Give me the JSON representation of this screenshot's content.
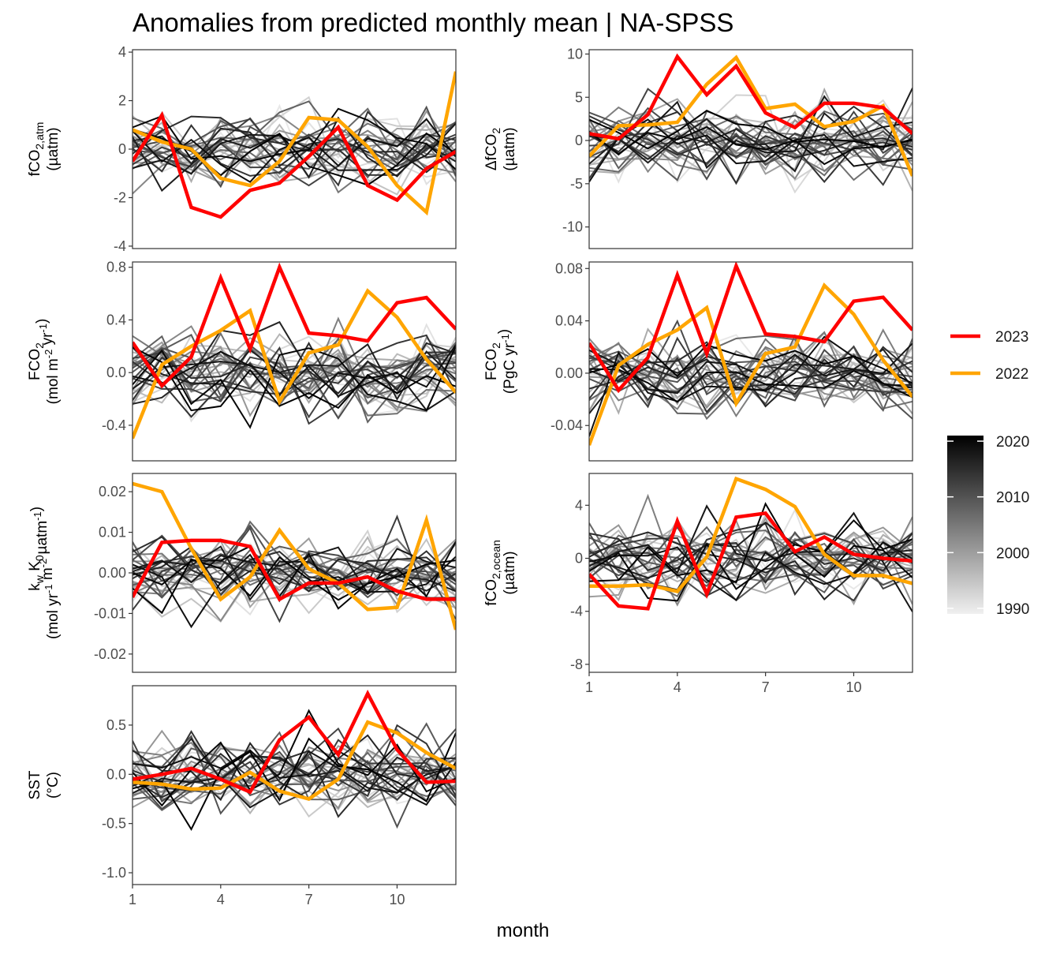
{
  "title": "Anomalies from predicted monthly mean | NA-SPSS",
  "x_axis_title": "month",
  "colors": {
    "2023": "#ff0000",
    "2022": "#ffa500",
    "grey_light": "#e8e8e8",
    "grey_dark": "#000000"
  },
  "legend": {
    "highlight": [
      {
        "label": "2023",
        "color": "#ff0000"
      },
      {
        "label": "2022",
        "color": "#ffa500"
      }
    ],
    "colorbar": {
      "ticks": [
        "2020",
        "2010",
        "2000",
        "1990"
      ],
      "range": [
        1989,
        2021
      ]
    }
  },
  "chart_data": [
    {
      "type": "line",
      "panel": "fco2-atm",
      "ylabel": {
        "l1": "fCO",
        "sub": "2,atm",
        "l2": "(µatm)"
      },
      "xlim": [
        1,
        12
      ],
      "xticks": [
        "1",
        "4",
        "7",
        "10"
      ],
      "ylim": [
        -4.1,
        4.1
      ],
      "yticks": [
        "-4",
        "-2",
        "0",
        "2",
        "4"
      ],
      "ytick_values": [
        -4,
        -2,
        0,
        2,
        4
      ],
      "x": [
        1,
        2,
        3,
        4,
        5,
        6,
        7,
        8,
        9,
        10,
        11,
        12
      ],
      "series": [
        {
          "year": "2023",
          "values": [
            -0.5,
            1.4,
            -2.4,
            -2.8,
            -1.7,
            -1.4,
            -0.3,
            0.9,
            -1.5,
            -2.1,
            -0.8,
            -0.1
          ]
        },
        {
          "year": "2022",
          "values": [
            0.8,
            0.3,
            0.0,
            -1.2,
            -1.5,
            -0.5,
            1.3,
            1.2,
            0.1,
            -1.5,
            -2.6,
            3.2
          ]
        }
      ]
    },
    {
      "type": "line",
      "panel": "delta-fco2",
      "ylabel": {
        "l1": "ΔfCO",
        "sub": "2",
        "l2": "(µatm)"
      },
      "xlim": [
        1,
        12
      ],
      "xticks": [
        "1",
        "4",
        "7",
        "10"
      ],
      "ylim": [
        -12.5,
        10.5
      ],
      "yticks": [
        "-10",
        "-5",
        "0",
        "5",
        "10"
      ],
      "ytick_values": [
        -10,
        -5,
        0,
        5,
        10
      ],
      "x": [
        1,
        2,
        3,
        4,
        5,
        6,
        7,
        8,
        9,
        10,
        11,
        12
      ],
      "series": [
        {
          "year": "2023",
          "values": [
            0.8,
            0.2,
            3.0,
            9.7,
            5.3,
            8.6,
            3.2,
            1.5,
            4.3,
            4.3,
            3.8,
            0.8
          ]
        },
        {
          "year": "2022",
          "values": [
            -1.8,
            1.7,
            1.8,
            2.1,
            6.5,
            9.6,
            3.7,
            4.2,
            1.6,
            2.2,
            4.0,
            -4.1
          ]
        }
      ]
    },
    {
      "type": "line",
      "panel": "fco2-flux-area",
      "ylabel": {
        "l1": "FCO",
        "sub": "2",
        "l2": "(mol m-2 yr-1)"
      },
      "xlim": [
        1,
        12
      ],
      "xticks": [
        "1",
        "4",
        "7",
        "10"
      ],
      "ylim": [
        -0.67,
        0.84
      ],
      "yticks": [
        "-0.4",
        "0.0",
        "0.4",
        "0.8"
      ],
      "ytick_values": [
        -0.4,
        0.0,
        0.4,
        0.8
      ],
      "x": [
        1,
        2,
        3,
        4,
        5,
        6,
        7,
        8,
        9,
        10,
        11,
        12
      ],
      "series": [
        {
          "year": "2023",
          "values": [
            0.23,
            -0.1,
            0.12,
            0.72,
            0.18,
            0.8,
            0.3,
            0.28,
            0.24,
            0.53,
            0.57,
            0.33
          ]
        },
        {
          "year": "2022",
          "values": [
            -0.5,
            0.06,
            0.2,
            0.32,
            0.47,
            -0.22,
            0.15,
            0.21,
            0.62,
            0.42,
            0.1,
            -0.15
          ]
        }
      ]
    },
    {
      "type": "line",
      "panel": "fco2-flux-total",
      "ylabel": {
        "l1": "FCO",
        "sub": "2",
        "l2": "(PgC yr-1)"
      },
      "xlim": [
        1,
        12
      ],
      "xticks": [
        "1",
        "4",
        "7",
        "10"
      ],
      "ylim": [
        -0.067,
        0.085
      ],
      "yticks": [
        "-0.04",
        "0.00",
        "0.04",
        "0.08"
      ],
      "ytick_values": [
        -0.04,
        0.0,
        0.04,
        0.08
      ],
      "x": [
        1,
        2,
        3,
        4,
        5,
        6,
        7,
        8,
        9,
        10,
        11,
        12
      ],
      "series": [
        {
          "year": "2023",
          "values": [
            0.023,
            -0.013,
            0.012,
            0.075,
            0.015,
            0.082,
            0.03,
            0.028,
            0.024,
            0.055,
            0.058,
            0.033
          ]
        },
        {
          "year": "2022",
          "values": [
            -0.055,
            0.006,
            0.022,
            0.033,
            0.05,
            -0.023,
            0.015,
            0.02,
            0.067,
            0.045,
            0.01,
            -0.018
          ]
        }
      ]
    },
    {
      "type": "line",
      "panel": "kw-k0",
      "ylabel": {
        "l1": "k",
        "sub1": "w",
        "l1b": " K",
        "sub2": "0",
        "l2": "(mol yr-1 m-2 µatm-1)"
      },
      "xlim": [
        1,
        12
      ],
      "xticks": [
        "1",
        "4",
        "7",
        "10"
      ],
      "ylim": [
        -0.0245,
        0.0245
      ],
      "yticks": [
        "-0.02",
        "-0.01",
        "0.00",
        "0.01",
        "0.02"
      ],
      "ytick_values": [
        -0.02,
        -0.01,
        0.0,
        0.01,
        0.02
      ],
      "x": [
        1,
        2,
        3,
        4,
        5,
        6,
        7,
        8,
        9,
        10,
        11,
        12
      ],
      "series": [
        {
          "year": "2023",
          "values": [
            -0.006,
            0.0075,
            0.008,
            0.008,
            0.0065,
            -0.0065,
            -0.0025,
            -0.0025,
            -0.001,
            -0.0045,
            -0.0065,
            -0.0065
          ]
        },
        {
          "year": "2022",
          "values": [
            0.022,
            0.02,
            0.006,
            -0.0065,
            -0.001,
            0.0105,
            0.001,
            -0.0025,
            -0.009,
            -0.0085,
            0.013,
            -0.014
          ]
        }
      ]
    },
    {
      "type": "line",
      "panel": "fco2-ocean",
      "ylabel": {
        "l1": "fCO",
        "sub": "2,ocean",
        "l2": "(µatm)"
      },
      "xlim": [
        1,
        12
      ],
      "xticks": [
        "1",
        "4",
        "7",
        "10"
      ],
      "ylim": [
        -8.6,
        6.4
      ],
      "yticks": [
        "-8",
        "-4",
        "0",
        "4"
      ],
      "ytick_values": [
        -8,
        -4,
        0,
        4
      ],
      "x": [
        1,
        2,
        3,
        4,
        5,
        6,
        7,
        8,
        9,
        10,
        11,
        12
      ],
      "series": [
        {
          "year": "2023",
          "values": [
            -1.2,
            -3.6,
            -3.8,
            2.8,
            -2.7,
            3.1,
            3.4,
            0.5,
            1.6,
            0.3,
            0.0,
            -0.2
          ]
        },
        {
          "year": "2022",
          "values": [
            -2.1,
            -2.1,
            -2.0,
            -2.5,
            0.1,
            6.0,
            5.2,
            3.9,
            0.3,
            -1.3,
            -1.3,
            -1.9
          ]
        }
      ]
    },
    {
      "type": "line",
      "panel": "sst",
      "ylabel": {
        "l1": "SST",
        "l2": "(°C)"
      },
      "xlim": [
        1,
        12
      ],
      "xticks": [
        "1",
        "4",
        "7",
        "10"
      ],
      "ylim": [
        -1.12,
        0.9
      ],
      "yticks": [
        "-1.0",
        "-0.5",
        "0.0",
        "0.5"
      ],
      "ytick_values": [
        -1.0,
        -0.5,
        0.0,
        0.5
      ],
      "x": [
        1,
        2,
        3,
        4,
        5,
        6,
        7,
        8,
        9,
        10,
        11,
        12
      ],
      "series": [
        {
          "year": "2023",
          "values": [
            -0.05,
            0.0,
            0.06,
            -0.05,
            -0.18,
            0.35,
            0.58,
            0.2,
            0.82,
            0.25,
            -0.08,
            -0.07
          ]
        },
        {
          "year": "2022",
          "values": [
            -0.08,
            -0.1,
            -0.15,
            -0.14,
            0.02,
            -0.17,
            -0.25,
            -0.05,
            0.53,
            0.42,
            0.22,
            0.06
          ]
        }
      ]
    }
  ]
}
